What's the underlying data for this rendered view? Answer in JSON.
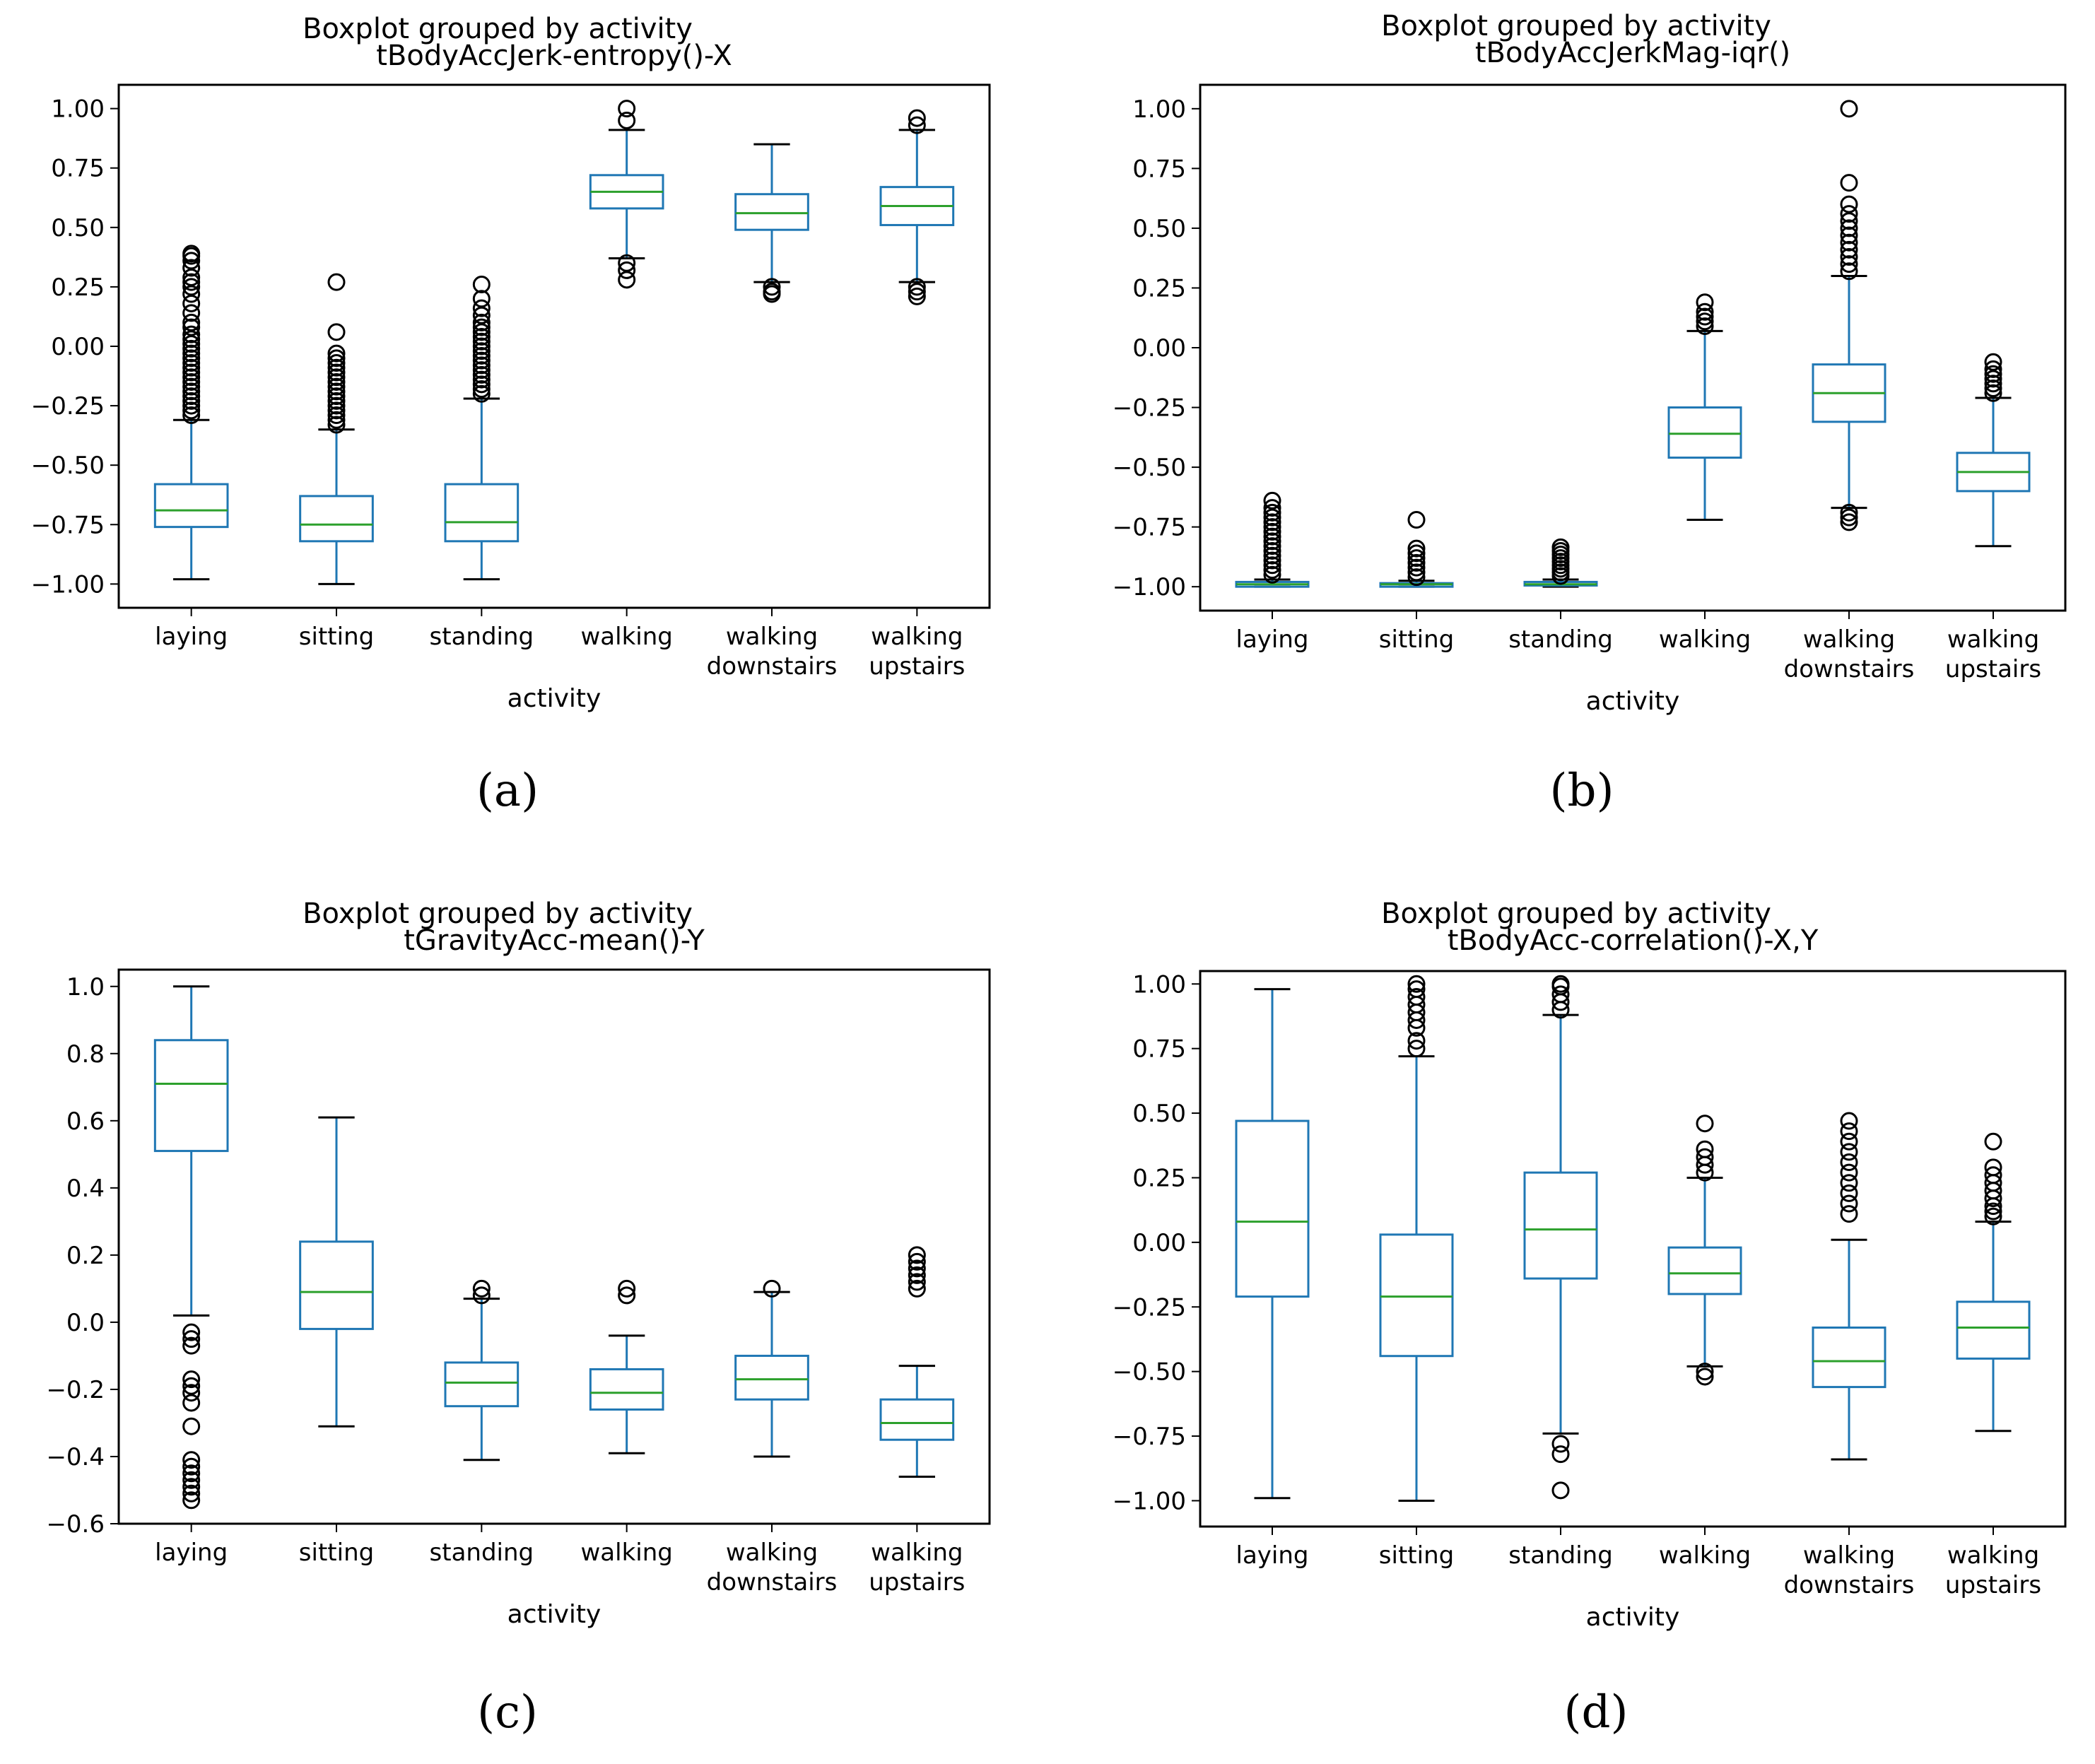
{
  "figure": {
    "panel_labels": [
      "(a)",
      "(b)",
      "(c)",
      "(d)"
    ]
  },
  "colors": {
    "box": "#1f77b4",
    "median": "#2ca02c",
    "axis": "#000000",
    "outlier": "#000000"
  },
  "chart_data": [
    {
      "type": "boxplot",
      "title": "Boxplot grouped by activity",
      "subtitle": "tBodyAccJerk-entropy()-X",
      "xlabel": "activity",
      "ylabel": "",
      "categories": [
        "laying",
        "sitting",
        "standing",
        "walking",
        "walking\ndownstairs",
        "walking\nupstairs"
      ],
      "ylim": [
        -1.1,
        1.1
      ],
      "yticks": [
        -1.0,
        -0.75,
        -0.5,
        -0.25,
        0.0,
        0.25,
        0.5,
        0.75,
        1.0
      ],
      "ytick_labels": [
        "−1.00",
        "−0.75",
        "−0.50",
        "−0.25",
        "0.00",
        "0.25",
        "0.50",
        "0.75",
        "1.00"
      ],
      "boxes": [
        {
          "whislo": -0.98,
          "q1": -0.76,
          "med": -0.69,
          "q3": -0.58,
          "whishi": -0.31,
          "fliers": [
            -0.29,
            -0.27,
            -0.25,
            -0.23,
            -0.21,
            -0.19,
            -0.17,
            -0.15,
            -0.13,
            -0.11,
            -0.09,
            -0.07,
            -0.05,
            -0.03,
            -0.01,
            0.01,
            0.03,
            0.05,
            0.08,
            0.1,
            0.14,
            0.18,
            0.22,
            0.25,
            0.27,
            0.29,
            0.33,
            0.36,
            0.38,
            0.39
          ]
        },
        {
          "whislo": -1.0,
          "q1": -0.82,
          "med": -0.75,
          "q3": -0.63,
          "whishi": -0.35,
          "fliers": [
            -0.33,
            -0.31,
            -0.29,
            -0.27,
            -0.25,
            -0.23,
            -0.21,
            -0.19,
            -0.17,
            -0.15,
            -0.13,
            -0.11,
            -0.09,
            -0.07,
            -0.05,
            -0.03,
            0.06,
            0.27
          ]
        },
        {
          "whislo": -0.98,
          "q1": -0.82,
          "med": -0.74,
          "q3": -0.58,
          "whishi": -0.22,
          "fliers": [
            -0.2,
            -0.18,
            -0.16,
            -0.14,
            -0.12,
            -0.1,
            -0.08,
            -0.06,
            -0.04,
            -0.02,
            0.0,
            0.02,
            0.04,
            0.06,
            0.08,
            0.1,
            0.13,
            0.16,
            0.2,
            0.26
          ]
        },
        {
          "whislo": 0.37,
          "q1": 0.58,
          "med": 0.65,
          "q3": 0.72,
          "whishi": 0.91,
          "fliers": [
            0.28,
            0.32,
            0.35,
            0.95,
            1.0
          ]
        },
        {
          "whislo": 0.27,
          "q1": 0.49,
          "med": 0.56,
          "q3": 0.64,
          "whishi": 0.85,
          "fliers": [
            0.22,
            0.23,
            0.25
          ]
        },
        {
          "whislo": 0.27,
          "q1": 0.51,
          "med": 0.59,
          "q3": 0.67,
          "whishi": 0.91,
          "fliers": [
            0.21,
            0.23,
            0.25,
            0.93,
            0.96
          ]
        }
      ]
    },
    {
      "type": "boxplot",
      "title": "Boxplot grouped by activity",
      "subtitle": "tBodyAccJerkMag-iqr()",
      "xlabel": "activity",
      "ylabel": "",
      "categories": [
        "laying",
        "sitting",
        "standing",
        "walking",
        "walking\ndownstairs",
        "walking\nupstairs"
      ],
      "ylim": [
        -1.1,
        1.1
      ],
      "yticks": [
        -1.0,
        -0.75,
        -0.5,
        -0.25,
        0.0,
        0.25,
        0.5,
        0.75,
        1.0
      ],
      "ytick_labels": [
        "−1.00",
        "−0.75",
        "−0.50",
        "−0.25",
        "0.00",
        "0.25",
        "0.50",
        "0.75",
        "1.00"
      ],
      "boxes": [
        {
          "whislo": -1.0,
          "q1": -1.0,
          "med": -0.99,
          "q3": -0.98,
          "whishi": -0.97,
          "fliers": [
            -0.95,
            -0.93,
            -0.91,
            -0.89,
            -0.87,
            -0.85,
            -0.83,
            -0.81,
            -0.79,
            -0.77,
            -0.75,
            -0.73,
            -0.71,
            -0.69,
            -0.67,
            -0.64
          ]
        },
        {
          "whislo": -1.0,
          "q1": -1.0,
          "med": -0.99,
          "q3": -0.985,
          "whishi": -0.975,
          "fliers": [
            -0.96,
            -0.94,
            -0.92,
            -0.9,
            -0.88,
            -0.86,
            -0.84,
            -0.72
          ]
        },
        {
          "whislo": -1.0,
          "q1": -0.995,
          "med": -0.99,
          "q3": -0.98,
          "whishi": -0.97,
          "fliers": [
            -0.955,
            -0.94,
            -0.925,
            -0.91,
            -0.895,
            -0.88,
            -0.865,
            -0.85,
            -0.835
          ]
        },
        {
          "whislo": -0.72,
          "q1": -0.46,
          "med": -0.36,
          "q3": -0.25,
          "whishi": 0.07,
          "fliers": [
            0.09,
            0.11,
            0.13,
            0.15,
            0.19
          ]
        },
        {
          "whislo": -0.67,
          "q1": -0.31,
          "med": -0.19,
          "q3": -0.07,
          "whishi": 0.3,
          "fliers": [
            -0.73,
            -0.71,
            -0.69,
            0.32,
            0.35,
            0.38,
            0.41,
            0.44,
            0.47,
            0.5,
            0.53,
            0.56,
            0.6,
            0.69,
            1.0
          ]
        },
        {
          "whislo": -0.83,
          "q1": -0.6,
          "med": -0.52,
          "q3": -0.44,
          "whishi": -0.21,
          "fliers": [
            -0.19,
            -0.17,
            -0.15,
            -0.13,
            -0.11,
            -0.09,
            -0.06
          ]
        }
      ]
    },
    {
      "type": "boxplot",
      "title": "Boxplot grouped by activity",
      "subtitle": "tGravityAcc-mean()-Y",
      "xlabel": "activity",
      "ylabel": "",
      "categories": [
        "laying",
        "sitting",
        "standing",
        "walking",
        "walking\ndownstairs",
        "walking\nupstairs"
      ],
      "ylim": [
        -0.6,
        1.05
      ],
      "yticks": [
        -0.6,
        -0.4,
        -0.2,
        0.0,
        0.2,
        0.4,
        0.6,
        0.8,
        1.0
      ],
      "ytick_labels": [
        "−0.6",
        "−0.4",
        "−0.2",
        "0.0",
        "0.2",
        "0.4",
        "0.6",
        "0.8",
        "1.0"
      ],
      "boxes": [
        {
          "whislo": 0.02,
          "q1": 0.51,
          "med": 0.71,
          "q3": 0.84,
          "whishi": 1.0,
          "fliers": [
            -0.03,
            -0.05,
            -0.07,
            -0.17,
            -0.19,
            -0.21,
            -0.24,
            -0.31,
            -0.41,
            -0.43,
            -0.45,
            -0.47,
            -0.49,
            -0.51,
            -0.53
          ]
        },
        {
          "whislo": -0.31,
          "q1": -0.02,
          "med": 0.09,
          "q3": 0.24,
          "whishi": 0.61,
          "fliers": []
        },
        {
          "whislo": -0.41,
          "q1": -0.25,
          "med": -0.18,
          "q3": -0.12,
          "whishi": 0.07,
          "fliers": [
            0.08,
            0.1
          ]
        },
        {
          "whislo": -0.39,
          "q1": -0.26,
          "med": -0.21,
          "q3": -0.14,
          "whishi": -0.04,
          "fliers": [
            0.08,
            0.1
          ]
        },
        {
          "whislo": -0.4,
          "q1": -0.23,
          "med": -0.17,
          "q3": -0.1,
          "whishi": 0.09,
          "fliers": [
            0.1
          ]
        },
        {
          "whislo": -0.46,
          "q1": -0.35,
          "med": -0.3,
          "q3": -0.23,
          "whishi": -0.13,
          "fliers": [
            0.1,
            0.12,
            0.14,
            0.16,
            0.18,
            0.2
          ]
        }
      ]
    },
    {
      "type": "boxplot",
      "title": "Boxplot grouped by activity",
      "subtitle": "tBodyAcc-correlation()-X,Y",
      "xlabel": "activity",
      "ylabel": "",
      "categories": [
        "laying",
        "sitting",
        "standing",
        "walking",
        "walking\ndownstairs",
        "walking\nupstairs"
      ],
      "ylim": [
        -1.1,
        1.05
      ],
      "yticks": [
        -1.0,
        -0.75,
        -0.5,
        -0.25,
        0.0,
        0.25,
        0.5,
        0.75,
        1.0
      ],
      "ytick_labels": [
        "−1.00",
        "−0.75",
        "−0.50",
        "−0.25",
        "0.00",
        "0.25",
        "0.50",
        "0.75",
        "1.00"
      ],
      "boxes": [
        {
          "whislo": -0.99,
          "q1": -0.21,
          "med": 0.08,
          "q3": 0.47,
          "whishi": 0.98,
          "fliers": []
        },
        {
          "whislo": -1.0,
          "q1": -0.44,
          "med": -0.21,
          "q3": 0.03,
          "whishi": 0.72,
          "fliers": [
            0.75,
            0.78,
            0.83,
            0.86,
            0.89,
            0.92,
            0.95,
            0.98,
            1.0
          ]
        },
        {
          "whislo": -0.74,
          "q1": -0.14,
          "med": 0.05,
          "q3": 0.27,
          "whishi": 0.88,
          "fliers": [
            -0.78,
            -0.82,
            -0.96,
            0.9,
            0.93,
            0.96,
            0.99,
            1.0
          ]
        },
        {
          "whislo": -0.48,
          "q1": -0.2,
          "med": -0.12,
          "q3": -0.02,
          "whishi": 0.25,
          "fliers": [
            -0.5,
            -0.52,
            0.27,
            0.3,
            0.33,
            0.36,
            0.46
          ]
        },
        {
          "whislo": -0.84,
          "q1": -0.56,
          "med": -0.46,
          "q3": -0.33,
          "whishi": 0.01,
          "fliers": [
            0.11,
            0.15,
            0.19,
            0.23,
            0.27,
            0.31,
            0.35,
            0.39,
            0.43,
            0.47
          ]
        },
        {
          "whislo": -0.73,
          "q1": -0.45,
          "med": -0.33,
          "q3": -0.23,
          "whishi": 0.08,
          "fliers": [
            0.1,
            0.12,
            0.14,
            0.17,
            0.2,
            0.23,
            0.26,
            0.29,
            0.39
          ]
        }
      ]
    }
  ]
}
